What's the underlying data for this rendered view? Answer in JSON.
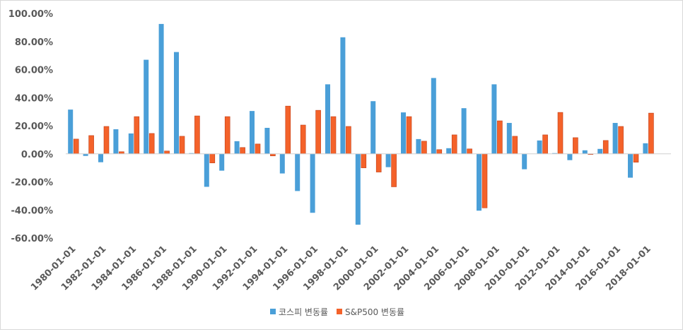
{
  "chart_data": {
    "type": "bar",
    "title": "",
    "xlabel": "",
    "ylabel": "",
    "ylim": [
      -60,
      100
    ],
    "y_step": 20,
    "y_tick_labels": [
      "-60.00%",
      "-40.00%",
      "-20.00%",
      "0.00%",
      "20.00%",
      "40.00%",
      "60.00%",
      "80.00%",
      "100.00%"
    ],
    "categories": [
      "1980-01-01",
      "1981-01-01",
      "1982-01-01",
      "1983-01-01",
      "1984-01-01",
      "1985-01-01",
      "1986-01-01",
      "1987-01-01",
      "1988-01-01",
      "1989-01-01",
      "1990-01-01",
      "1991-01-01",
      "1992-01-01",
      "1993-01-01",
      "1994-01-01",
      "1995-01-01",
      "1996-01-01",
      "1997-01-01",
      "1998-01-01",
      "1999-01-01",
      "2000-01-01",
      "2001-01-01",
      "2002-01-01",
      "2003-01-01",
      "2004-01-01",
      "2005-01-01",
      "2006-01-01",
      "2007-01-01",
      "2008-01-01",
      "2009-01-01",
      "2010-01-01",
      "2011-01-01",
      "2012-01-01",
      "2013-01-01",
      "2014-01-01",
      "2015-01-01",
      "2016-01-01",
      "2017-01-01",
      "2018-01-01",
      "2019-01-01"
    ],
    "x_tick_labels": [
      "1980-01-01",
      "1982-01-01",
      "1984-01-01",
      "1986-01-01",
      "1988-01-01",
      "1990-01-01",
      "1992-01-01",
      "1994-01-01",
      "1996-01-01",
      "1998-01-01",
      "2000-01-01",
      "2002-01-01",
      "2004-01-01",
      "2006-01-01",
      "2008-01-01",
      "2010-01-01",
      "2012-01-01",
      "2014-01-01",
      "2016-01-01",
      "2018-01-01"
    ],
    "series": [
      {
        "name": "코스피 변동률",
        "color": "#4a9fd8",
        "values": [
          31.5,
          -1.5,
          -6,
          17.5,
          14.5,
          67,
          92.5,
          72.5,
          0.5,
          -23.5,
          -12,
          9,
          30.5,
          18.5,
          -14,
          -26.5,
          -42,
          49.5,
          83,
          -50.5,
          37.5,
          -9.5,
          29.5,
          10.5,
          54,
          4,
          32.5,
          -40.5,
          49.5,
          22,
          -11,
          9.5,
          0.5,
          -4.5,
          2.5,
          3.5,
          22,
          -17,
          7.5,
          0
        ]
      },
      {
        "name": "S&P500 변동률",
        "color": "#f4622a",
        "values": [
          10.5,
          13,
          19.5,
          1.5,
          26.5,
          14.5,
          2,
          12.5,
          27,
          -6.5,
          26.5,
          4.5,
          7,
          -1.5,
          34,
          20.5,
          31,
          26.5,
          19.5,
          -10,
          -13,
          -23.5,
          26.5,
          9,
          3,
          13.5,
          3.5,
          -38.5,
          23.5,
          12.5,
          0,
          13.5,
          29.5,
          11.5,
          -0.5,
          9.5,
          19.5,
          -6,
          29,
          0
        ]
      }
    ],
    "legend_position": "bottom"
  }
}
